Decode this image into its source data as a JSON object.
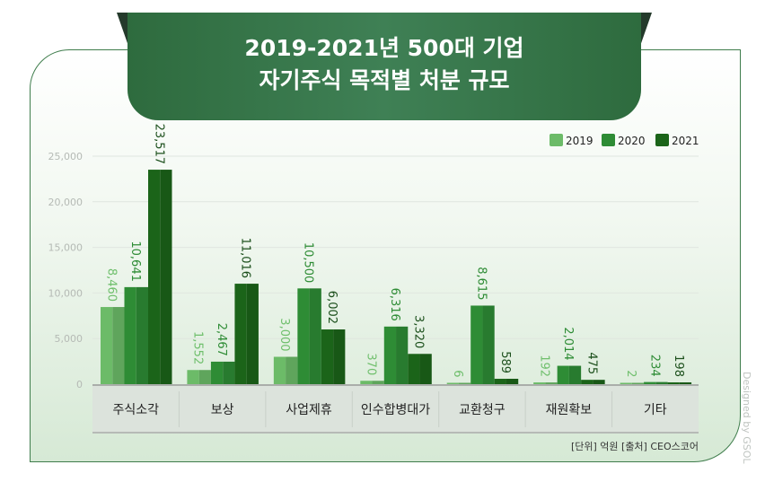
{
  "title": {
    "line1": "2019-2021년 500대 기업",
    "line2": "자기주식 목적별 처분 규모"
  },
  "source": "[단위] 억원  [출처] CEO스코어",
  "credit": "Designed by GSOL",
  "colors": {
    "2019": "#6cbb68",
    "2020": "#2e8c35",
    "2021": "#1b6419",
    "label2019": "#6fbf6c",
    "label2020": "#2e8c35",
    "label2021": "#1b4f1b"
  },
  "chart_data": {
    "type": "bar",
    "title": "2019-2021년 500대 기업 자기주식 목적별 처분 규모",
    "categories": [
      "주식소각",
      "보상",
      "사업제휴",
      "인수합병대가",
      "교환청구",
      "재원확보",
      "기타"
    ],
    "series": [
      {
        "name": "2019",
        "values": [
          8460,
          1552,
          3000,
          370,
          6,
          192,
          2
        ]
      },
      {
        "name": "2020",
        "values": [
          10641,
          2467,
          10500,
          6316,
          8615,
          2014,
          234
        ]
      },
      {
        "name": "2021",
        "values": [
          23517,
          11016,
          6002,
          3320,
          589,
          475,
          198
        ]
      }
    ],
    "value_labels": [
      [
        "8,460",
        "1,552",
        "3,000",
        "370",
        "6",
        "192",
        "2"
      ],
      [
        "10,641",
        "2,467",
        "10,500",
        "6,316",
        "8,615",
        "2,014",
        "234"
      ],
      [
        "23,517",
        "11,016",
        "6,002",
        "3,320",
        "589",
        "475",
        "198"
      ]
    ],
    "yticks": [
      "0",
      "5,000",
      "10,000",
      "15,000",
      "20,000",
      "25,000"
    ],
    "ylim": [
      0,
      25000
    ],
    "grid": true,
    "legend": "top-right",
    "unit": "억원"
  }
}
